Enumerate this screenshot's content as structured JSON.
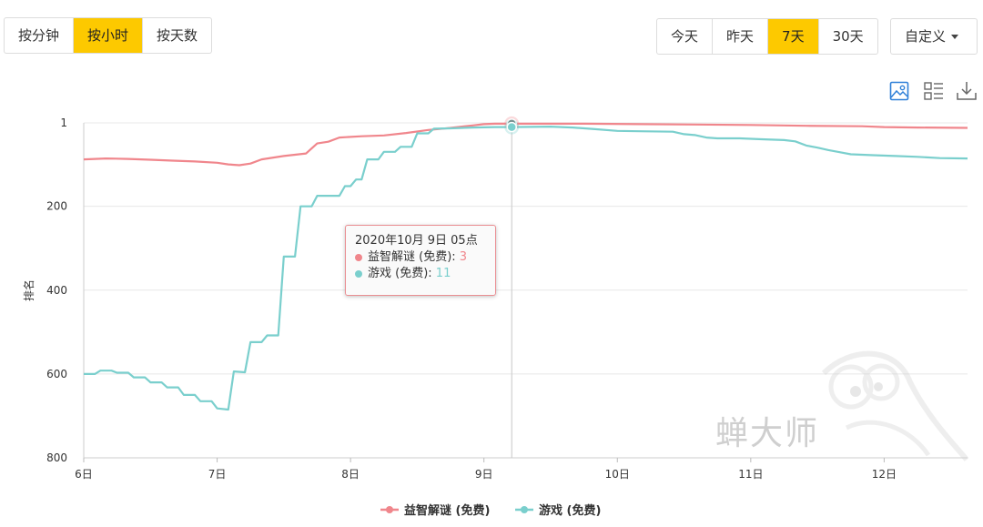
{
  "granularity": {
    "options": [
      "按分钟",
      "按小时",
      "按天数"
    ],
    "selected": "按小时"
  },
  "range": {
    "options": [
      "今天",
      "昨天",
      "7天",
      "30天"
    ],
    "selected": "7天",
    "custom_label": "自定义"
  },
  "toolbar": {
    "image_icon": "image-icon",
    "list_icon": "list-view-icon",
    "download_icon": "download-icon"
  },
  "watermark": "蝉大师",
  "tooltip": {
    "title": "2020年10月 9日 05点",
    "rows": [
      {
        "name": "益智解谜 (免费):",
        "value": "3"
      },
      {
        "name": "游戏 (免费):",
        "value": "11"
      }
    ]
  },
  "colors": {
    "puzzle": "#f0868c",
    "games": "#7acfcd",
    "active_button": "#fdc900"
  },
  "chart_data": {
    "type": "line",
    "title": "",
    "xlabel": "",
    "ylabel": "排名",
    "y_reversed": true,
    "ylim": [
      1,
      800
    ],
    "y_ticks": [
      1,
      200,
      400,
      600,
      800
    ],
    "x_ticks": [
      "6日",
      "7日",
      "8日",
      "9日",
      "10日",
      "11日",
      "12日"
    ],
    "x_unit": "hours since 6日 00点",
    "xlim": [
      0,
      159
    ],
    "grid": "horizontal",
    "legend": "bottom-center",
    "crosshair_x": 77,
    "series": [
      {
        "name": "益智解谜 (免费)",
        "color": "#f0868c",
        "points": [
          [
            0,
            88
          ],
          [
            4,
            86
          ],
          [
            8,
            87
          ],
          [
            12,
            89
          ],
          [
            16,
            91
          ],
          [
            20,
            93
          ],
          [
            24,
            96
          ],
          [
            26,
            100
          ],
          [
            28,
            102
          ],
          [
            30,
            98
          ],
          [
            32,
            88
          ],
          [
            36,
            80
          ],
          [
            40,
            74
          ],
          [
            42,
            50
          ],
          [
            44,
            46
          ],
          [
            46,
            36
          ],
          [
            50,
            33
          ],
          [
            54,
            31
          ],
          [
            58,
            25
          ],
          [
            62,
            18
          ],
          [
            66,
            13
          ],
          [
            68,
            10
          ],
          [
            70,
            7
          ],
          [
            72,
            4
          ],
          [
            74,
            3
          ],
          [
            77,
            3
          ],
          [
            90,
            3
          ],
          [
            100,
            4
          ],
          [
            110,
            5
          ],
          [
            120,
            6
          ],
          [
            130,
            8
          ],
          [
            140,
            9
          ],
          [
            144,
            11
          ],
          [
            150,
            12
          ],
          [
            159,
            13
          ]
        ]
      },
      {
        "name": "游戏 (免费)",
        "color": "#7acfcd",
        "points": [
          [
            0,
            600
          ],
          [
            2,
            600
          ],
          [
            3,
            592
          ],
          [
            5,
            592
          ],
          [
            6,
            597
          ],
          [
            8,
            597
          ],
          [
            9,
            608
          ],
          [
            11,
            608
          ],
          [
            12,
            620
          ],
          [
            14,
            620
          ],
          [
            15,
            632
          ],
          [
            17,
            632
          ],
          [
            18,
            650
          ],
          [
            20,
            650
          ],
          [
            21,
            665
          ],
          [
            23,
            665
          ],
          [
            24,
            682
          ],
          [
            26,
            685
          ],
          [
            27,
            594
          ],
          [
            29,
            596
          ],
          [
            30,
            524
          ],
          [
            32,
            524
          ],
          [
            33,
            508
          ],
          [
            35,
            508
          ],
          [
            36,
            320
          ],
          [
            38,
            320
          ],
          [
            39,
            200
          ],
          [
            41,
            200
          ],
          [
            42,
            175
          ],
          [
            46,
            175
          ],
          [
            47,
            152
          ],
          [
            48,
            152
          ],
          [
            49,
            136
          ],
          [
            50,
            136
          ],
          [
            51,
            88
          ],
          [
            53,
            88
          ],
          [
            54,
            70
          ],
          [
            56,
            70
          ],
          [
            57,
            58
          ],
          [
            59,
            58
          ],
          [
            60,
            26
          ],
          [
            62,
            26
          ],
          [
            63,
            15
          ],
          [
            66,
            14
          ],
          [
            70,
            12
          ],
          [
            74,
            11
          ],
          [
            77,
            11
          ],
          [
            84,
            10
          ],
          [
            88,
            12
          ],
          [
            92,
            16
          ],
          [
            96,
            20
          ],
          [
            100,
            21
          ],
          [
            106,
            22
          ],
          [
            108,
            28
          ],
          [
            110,
            30
          ],
          [
            112,
            36
          ],
          [
            114,
            38
          ],
          [
            118,
            38
          ],
          [
            122,
            40
          ],
          [
            126,
            42
          ],
          [
            128,
            45
          ],
          [
            130,
            55
          ],
          [
            132,
            60
          ],
          [
            134,
            66
          ],
          [
            136,
            71
          ],
          [
            138,
            76
          ],
          [
            142,
            78
          ],
          [
            146,
            80
          ],
          [
            150,
            82
          ],
          [
            154,
            85
          ],
          [
            159,
            86
          ]
        ]
      }
    ]
  }
}
